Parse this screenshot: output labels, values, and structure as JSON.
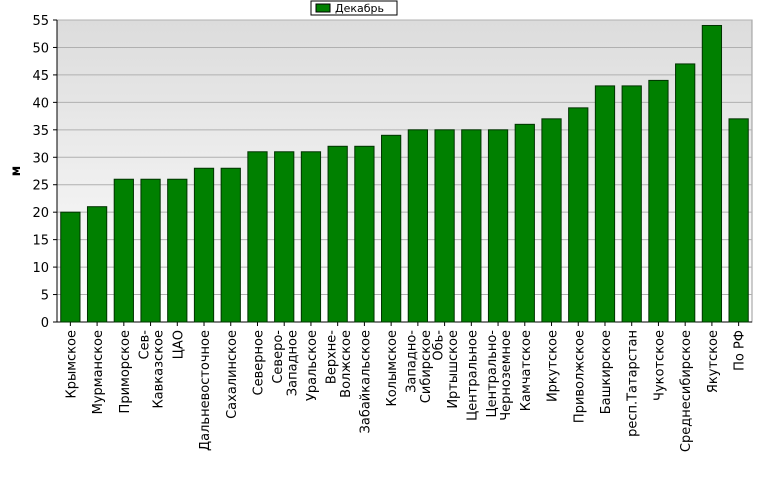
{
  "chart_data": {
    "type": "bar",
    "y_label": "м",
    "legend_label": "Декабрь",
    "color": "#008000",
    "categories": [
      "Крымское",
      "Мурманское",
      "Приморское",
      "Сев-\nКавказское",
      "ЦАО",
      "Дальневосточное",
      "Сахалинское",
      "Северное",
      "Северо-\nЗападное",
      "Уральское",
      "Верхне-\nВолжское",
      "Забайкальское",
      "Колымское",
      "Западно-\nСибирское",
      "Обь-\nИртышское",
      "Центральное",
      "Центрально-\nЧерноземное",
      "Камчатское",
      "Иркутское",
      "Приволжское",
      "Башкирское",
      "респ.Татарстан",
      "Чукотское",
      "Среднесибирское",
      "Якутское",
      "По РФ"
    ],
    "values": [
      20,
      21,
      26,
      26,
      26,
      28,
      28,
      31,
      31,
      31,
      32,
      32,
      34,
      35,
      35,
      35,
      35,
      36,
      37,
      39,
      43,
      43,
      44,
      47,
      54,
      37
    ],
    "ylim": [
      0,
      55
    ],
    "yticks": [
      0,
      5,
      10,
      15,
      20,
      25,
      30,
      35,
      40,
      45,
      50,
      55
    ],
    "grid": true
  }
}
